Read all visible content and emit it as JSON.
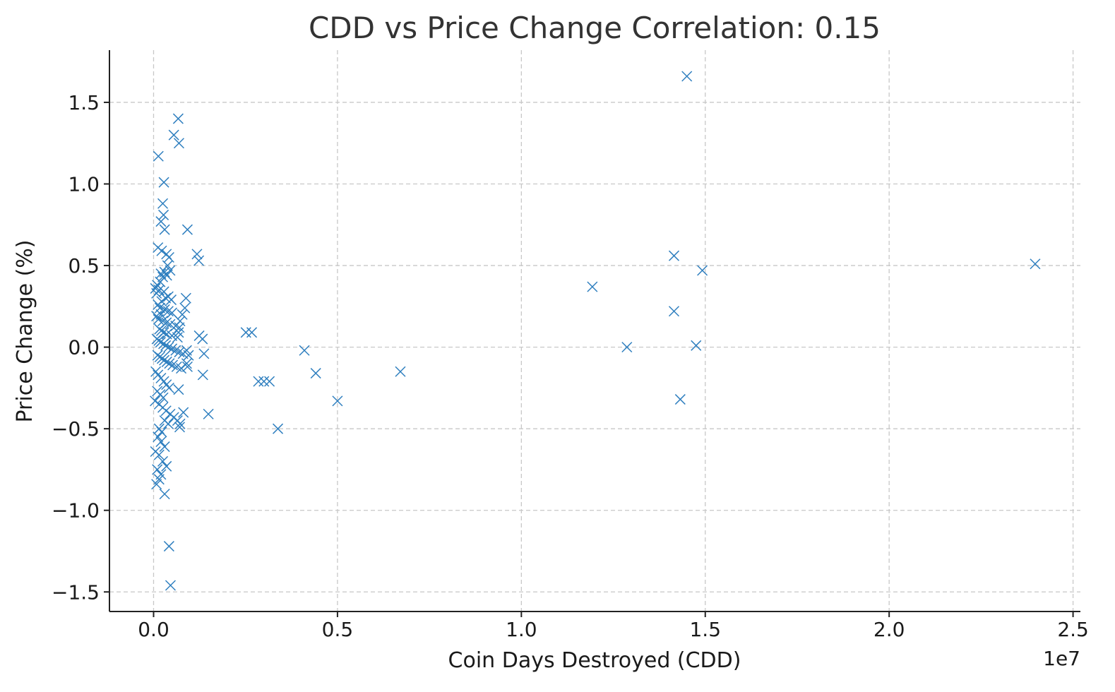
{
  "chart_data": {
    "type": "scatter",
    "title": "CDD vs Price Change Correlation: 0.15",
    "xlabel": "Coin Days Destroyed (CDD)",
    "ylabel": "Price Change (%)",
    "x_offset_label": "1e7",
    "x_scale_factor": 10000000,
    "xlim": [
      -0.12,
      2.52
    ],
    "ylim": [
      -1.62,
      1.82
    ],
    "xticks": [
      0.0,
      0.5,
      1.0,
      1.5,
      2.0,
      2.5
    ],
    "xtick_labels": [
      "0.0",
      "0.5",
      "1.0",
      "1.5",
      "2.0",
      "2.5"
    ],
    "yticks": [
      -1.5,
      -1.0,
      -0.5,
      0.0,
      0.5,
      1.0,
      1.5
    ],
    "ytick_labels": [
      "−1.5",
      "−1.0",
      "−0.5",
      "0.0",
      "0.5",
      "1.0",
      "1.5"
    ],
    "grid": true,
    "marker": "x",
    "color": "#2f7fbf",
    "series": [
      {
        "points": [
          [
            0.013,
            1.17
          ],
          [
            0.025,
            0.88
          ],
          [
            0.027,
            0.81
          ],
          [
            0.02,
            0.77
          ],
          [
            0.03,
            0.72
          ],
          [
            0.028,
            1.01
          ],
          [
            0.055,
            1.3
          ],
          [
            0.067,
            1.4
          ],
          [
            0.069,
            1.25
          ],
          [
            0.092,
            0.72
          ],
          [
            0.118,
            0.57
          ],
          [
            0.123,
            0.53
          ],
          [
            0.012,
            0.61
          ],
          [
            0.022,
            0.59
          ],
          [
            0.035,
            0.57
          ],
          [
            0.042,
            0.55
          ],
          [
            0.038,
            0.5
          ],
          [
            0.045,
            0.47
          ],
          [
            0.03,
            0.46
          ],
          [
            0.02,
            0.45
          ],
          [
            0.036,
            0.44
          ],
          [
            0.025,
            0.43
          ],
          [
            0.018,
            0.4
          ],
          [
            0.01,
            0.38
          ],
          [
            0.005,
            0.36
          ],
          [
            0.008,
            0.33
          ],
          [
            0.015,
            0.35
          ],
          [
            0.028,
            0.34
          ],
          [
            0.033,
            0.3
          ],
          [
            0.04,
            0.31
          ],
          [
            0.048,
            0.29
          ],
          [
            0.022,
            0.28
          ],
          [
            0.012,
            0.26
          ],
          [
            0.017,
            0.24
          ],
          [
            0.03,
            0.23
          ],
          [
            0.04,
            0.22
          ],
          [
            0.05,
            0.21
          ],
          [
            0.02,
            0.2
          ],
          [
            0.008,
            0.19
          ],
          [
            0.013,
            0.17
          ],
          [
            0.025,
            0.16
          ],
          [
            0.035,
            0.15
          ],
          [
            0.045,
            0.14
          ],
          [
            0.06,
            0.13
          ],
          [
            0.07,
            0.12
          ],
          [
            0.016,
            0.11
          ],
          [
            0.021,
            0.1
          ],
          [
            0.028,
            0.09
          ],
          [
            0.036,
            0.08
          ],
          [
            0.05,
            0.07
          ],
          [
            0.065,
            0.06
          ],
          [
            0.009,
            0.05
          ],
          [
            0.014,
            0.04
          ],
          [
            0.019,
            0.03
          ],
          [
            0.027,
            0.02
          ],
          [
            0.033,
            0.01
          ],
          [
            0.041,
            0.0
          ],
          [
            0.05,
            -0.01
          ],
          [
            0.06,
            -0.02
          ],
          [
            0.07,
            -0.03
          ],
          [
            0.08,
            -0.04
          ],
          [
            0.011,
            -0.05
          ],
          [
            0.017,
            -0.06
          ],
          [
            0.023,
            -0.07
          ],
          [
            0.029,
            -0.08
          ],
          [
            0.036,
            -0.09
          ],
          [
            0.043,
            -0.1
          ],
          [
            0.052,
            -0.11
          ],
          [
            0.063,
            -0.12
          ],
          [
            0.075,
            -0.13
          ],
          [
            0.09,
            -0.1
          ],
          [
            0.088,
            0.3
          ],
          [
            0.085,
            0.24
          ],
          [
            0.078,
            0.2
          ],
          [
            0.072,
            0.16
          ],
          [
            0.068,
            0.09
          ],
          [
            0.09,
            -0.02
          ],
          [
            0.095,
            -0.05
          ],
          [
            0.092,
            -0.12
          ],
          [
            0.006,
            -0.15
          ],
          [
            0.012,
            -0.17
          ],
          [
            0.02,
            -0.19
          ],
          [
            0.028,
            -0.21
          ],
          [
            0.035,
            -0.23
          ],
          [
            0.042,
            -0.25
          ],
          [
            0.01,
            -0.27
          ],
          [
            0.018,
            -0.29
          ],
          [
            0.026,
            -0.31
          ],
          [
            0.004,
            -0.33
          ],
          [
            0.015,
            -0.35
          ],
          [
            0.025,
            -0.37
          ],
          [
            0.034,
            -0.39
          ],
          [
            0.045,
            -0.41
          ],
          [
            0.055,
            -0.43
          ],
          [
            0.065,
            -0.45
          ],
          [
            0.072,
            -0.47
          ],
          [
            0.081,
            -0.4
          ],
          [
            0.03,
            -0.45
          ],
          [
            0.04,
            -0.47
          ],
          [
            0.015,
            -0.5
          ],
          [
            0.022,
            -0.52
          ],
          [
            0.012,
            -0.55
          ],
          [
            0.02,
            -0.58
          ],
          [
            0.03,
            -0.61
          ],
          [
            0.005,
            -0.64
          ],
          [
            0.015,
            -0.66
          ],
          [
            0.025,
            -0.7
          ],
          [
            0.035,
            -0.73
          ],
          [
            0.01,
            -0.75
          ],
          [
            0.02,
            -0.78
          ],
          [
            0.015,
            -0.81
          ],
          [
            0.008,
            -0.84
          ],
          [
            0.03,
            -0.9
          ],
          [
            0.042,
            -1.22
          ],
          [
            0.046,
            -1.46
          ],
          [
            0.068,
            -0.26
          ],
          [
            0.071,
            -0.49
          ],
          [
            0.124,
            0.07
          ],
          [
            0.133,
            0.05
          ],
          [
            0.137,
            -0.04
          ],
          [
            0.134,
            -0.17
          ],
          [
            0.149,
            -0.41
          ],
          [
            0.251,
            0.09
          ],
          [
            0.267,
            0.09
          ],
          [
            0.285,
            -0.21
          ],
          [
            0.3,
            -0.21
          ],
          [
            0.315,
            -0.21
          ],
          [
            0.338,
            -0.5
          ],
          [
            0.41,
            -0.02
          ],
          [
            0.441,
            -0.16
          ],
          [
            0.5,
            -0.33
          ],
          [
            0.671,
            -0.15
          ],
          [
            1.193,
            0.37
          ],
          [
            1.287,
            0.0
          ],
          [
            1.415,
            0.56
          ],
          [
            1.415,
            0.22
          ],
          [
            1.432,
            -0.32
          ],
          [
            1.45,
            1.66
          ],
          [
            1.475,
            0.01
          ],
          [
            1.492,
            0.47
          ],
          [
            2.397,
            0.51
          ]
        ]
      }
    ]
  }
}
